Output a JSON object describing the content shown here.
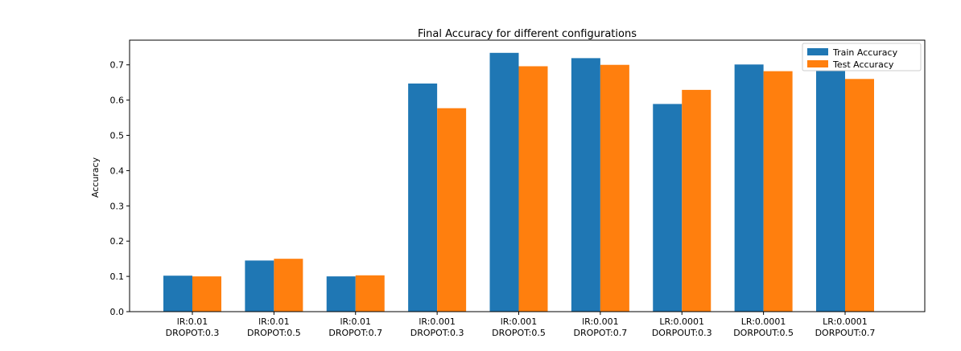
{
  "chart_data": {
    "type": "bar",
    "title": "Final Accuracy for different configurations",
    "xlabel": "",
    "ylabel": "Accuracy",
    "ylim": [
      0,
      0.77
    ],
    "yticks": [
      "0.0",
      "0.1",
      "0.2",
      "0.3",
      "0.4",
      "0.5",
      "0.6",
      "0.7"
    ],
    "grid": false,
    "legend_position": "top-right",
    "categories": [
      [
        "lR:0.01",
        "DROPOT:0.3"
      ],
      [
        "lR:0.01",
        "DROPOT:0.5"
      ],
      [
        "lR:0.01",
        "DROPOT:0.7"
      ],
      [
        "lR:0.001",
        "DROPOT:0.3"
      ],
      [
        "lR:0.001",
        "DROPOT:0.5"
      ],
      [
        "lR:0.001",
        "DROPOT:0.7"
      ],
      [
        "LR:0.0001",
        "DORPOUT:0.3"
      ],
      [
        "LR:0.0001",
        "DORPOUT:0.5"
      ],
      [
        "LR:0.0001",
        "DORPOUT:0.7"
      ]
    ],
    "series": [
      {
        "name": "Train Accuracy",
        "color": "#1f77b4",
        "values": [
          0.102,
          0.145,
          0.1,
          0.647,
          0.734,
          0.719,
          0.589,
          0.701,
          0.683
        ]
      },
      {
        "name": "Test Accuracy",
        "color": "#ff7f0e",
        "values": [
          0.1,
          0.15,
          0.103,
          0.577,
          0.696,
          0.7,
          0.629,
          0.682,
          0.66
        ]
      }
    ]
  }
}
